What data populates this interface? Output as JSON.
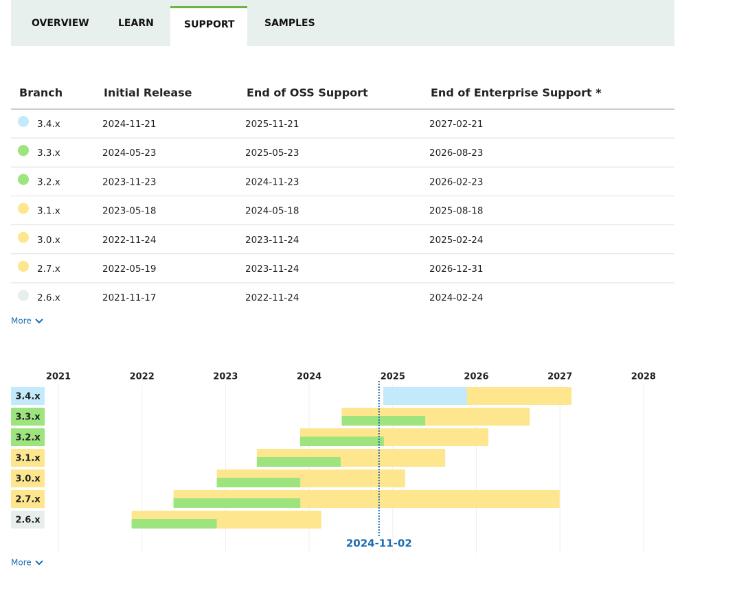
{
  "tabs": [
    "OVERVIEW",
    "LEARN",
    "SUPPORT",
    "SAMPLES"
  ],
  "active_tab": 2,
  "table": {
    "headers": [
      "Branch",
      "Initial Release",
      "End of OSS Support",
      "End of Enterprise Support *"
    ],
    "rows": [
      {
        "branch": "3.4.x",
        "initial": "2024-11-21",
        "oss": "2025-11-21",
        "enterprise": "2027-02-21"
      },
      {
        "branch": "3.3.x",
        "initial": "2024-05-23",
        "oss": "2025-05-23",
        "enterprise": "2026-08-23"
      },
      {
        "branch": "3.2.x",
        "initial": "2023-11-23",
        "oss": "2024-11-23",
        "enterprise": "2026-02-23"
      },
      {
        "branch": "3.1.x",
        "initial": "2023-05-18",
        "oss": "2024-05-18",
        "enterprise": "2025-08-18"
      },
      {
        "branch": "3.0.x",
        "initial": "2022-11-24",
        "oss": "2023-11-24",
        "enterprise": "2025-02-24"
      },
      {
        "branch": "2.7.x",
        "initial": "2022-05-19",
        "oss": "2023-11-24",
        "enterprise": "2026-12-31"
      },
      {
        "branch": "2.6.x",
        "initial": "2021-11-17",
        "oss": "2022-11-24",
        "enterprise": "2024-02-24"
      }
    ],
    "more": "More"
  },
  "timeline": {
    "years": [
      2021,
      2022,
      2023,
      2024,
      2025,
      2026,
      2027,
      2028
    ],
    "today": "2024-11-02",
    "more": "More"
  },
  "colors": {
    "future": "#c2eafb",
    "oss": "#9de37e",
    "enterprise": "#fde68e",
    "ended": "#e8eeec"
  }
}
